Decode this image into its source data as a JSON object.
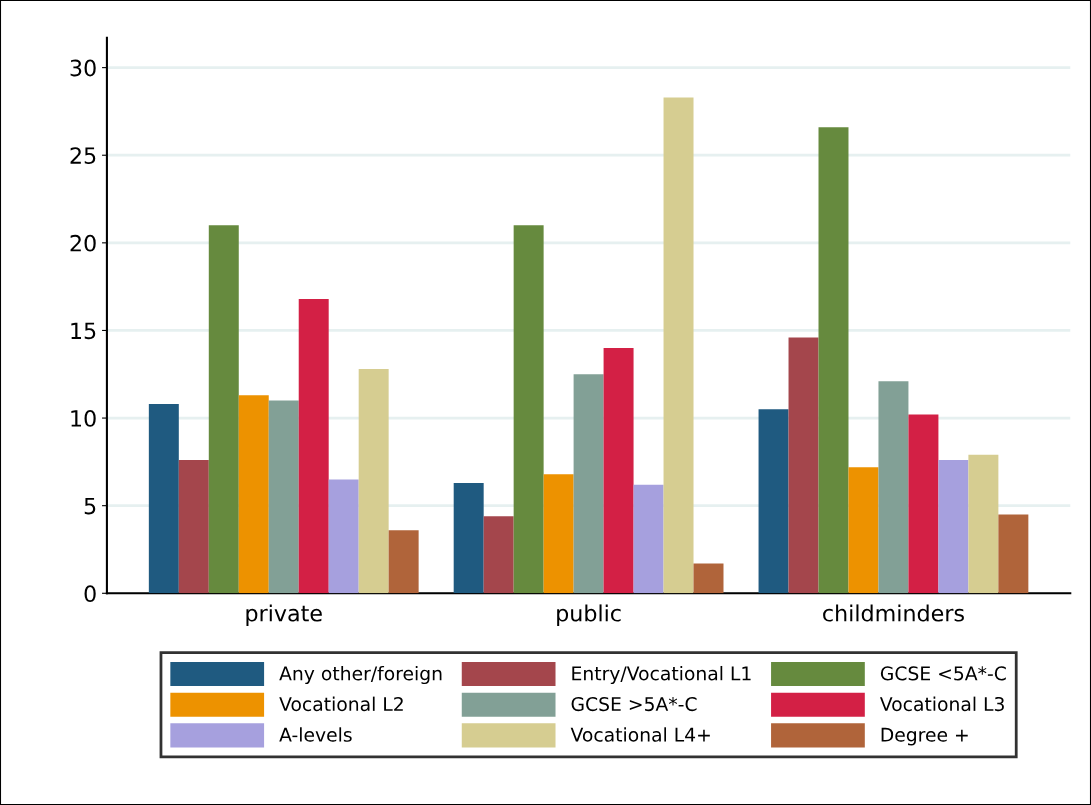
{
  "chart_data": {
    "type": "bar",
    "categories": [
      "private",
      "public",
      "childminders"
    ],
    "series": [
      {
        "name": "Any other/foreign",
        "color": "#1f5a80",
        "values": [
          10.8,
          6.3,
          10.5
        ]
      },
      {
        "name": "Entry/Vocational L1",
        "color": "#a4464c",
        "values": [
          7.6,
          4.4,
          14.6
        ]
      },
      {
        "name": "GCSE <5A*-C",
        "color": "#668a3e",
        "values": [
          21.0,
          21.0,
          26.6
        ]
      },
      {
        "name": "Vocational L2",
        "color": "#ed9200",
        "values": [
          11.3,
          6.8,
          7.2
        ]
      },
      {
        "name": "GCSE >5A*-C",
        "color": "#82a096",
        "values": [
          11.0,
          12.5,
          12.1
        ]
      },
      {
        "name": "Vocational L3",
        "color": "#d32045",
        "values": [
          16.8,
          14.0,
          10.2
        ]
      },
      {
        "name": "A-levels",
        "color": "#a6a0de",
        "values": [
          6.5,
          6.2,
          7.6
        ]
      },
      {
        "name": "Vocational L4+",
        "color": "#d6cd91",
        "values": [
          12.8,
          28.3,
          7.9
        ]
      },
      {
        "name": "Degree +",
        "color": "#b0643a",
        "values": [
          3.6,
          1.7,
          4.5
        ]
      }
    ],
    "ylim": [
      0,
      31.7
    ],
    "yticks": [
      0,
      5,
      10,
      15,
      20,
      25,
      30
    ],
    "grid": "y",
    "legend": "bottom"
  }
}
